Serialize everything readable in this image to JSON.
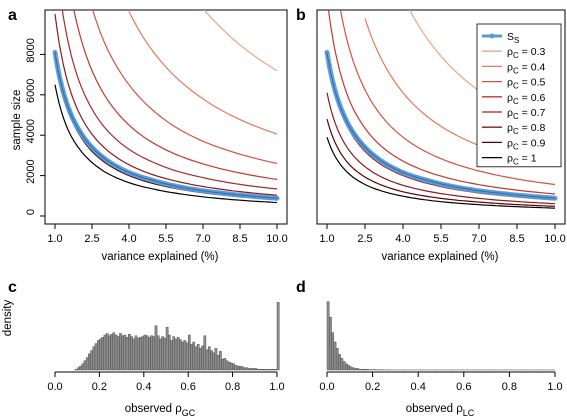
{
  "chart_data": [
    {
      "panel": "a",
      "type": "line",
      "xlabel": "variance explained (%)",
      "ylabel": "sample size",
      "xlim": [
        1,
        10
      ],
      "ylim": [
        0,
        10000
      ],
      "xticks": [
        "1.0",
        "2.5",
        "4.0",
        "5.5",
        "7.0",
        "8.5",
        "10.0"
      ],
      "yticks": [
        "0",
        "2000",
        "4000",
        "6000",
        "8000"
      ],
      "x": [
        1.0,
        1.5,
        2.0,
        2.5,
        3.0,
        4.0,
        5.0,
        6.0,
        7.0,
        8.0,
        9.0,
        10.0
      ],
      "series": [
        {
          "name": "S_S",
          "color": "#5b9bd5",
          "points": true,
          "values": [
            8100,
            5500,
            4200,
            3400,
            2850,
            2150,
            1750,
            1450,
            1250,
            1100,
            980,
            880
          ]
        },
        {
          "name": "ρC = 1",
          "color": "#000000",
          "values": [
            6500,
            4350,
            3300,
            2650,
            2200,
            1650,
            1330,
            1110,
            950,
            830,
            740,
            670
          ]
        },
        {
          "name": "ρC = 0.9",
          "color": "#5a0000",
          "values": [
            7900,
            5300,
            4000,
            3200,
            2670,
            2000,
            1600,
            1340,
            1150,
            1010,
            900,
            810
          ]
        },
        {
          "name": "ρC = 0.8",
          "color": "#8b1a1a",
          "values": [
            10000,
            6700,
            5050,
            4050,
            3380,
            2540,
            2030,
            1700,
            1460,
            1280,
            1140,
            1030
          ]
        },
        {
          "name": "ρC = 0.7",
          "color": "#a52a2a",
          "values": [
            null,
            8800,
            6600,
            5300,
            4400,
            3300,
            2650,
            2200,
            1900,
            1660,
            1480,
            1340
          ]
        },
        {
          "name": "ρC = 0.6",
          "color": "#c0392b",
          "values": [
            null,
            null,
            9000,
            7200,
            6000,
            4500,
            3600,
            3000,
            2580,
            2260,
            2010,
            1810
          ]
        },
        {
          "name": "ρC = 0.5",
          "color": "#d0543f",
          "values": [
            null,
            null,
            null,
            null,
            8600,
            6500,
            5200,
            4320,
            3700,
            3250,
            2890,
            2600
          ]
        },
        {
          "name": "ρC = 0.4",
          "color": "#e07b5a",
          "values": [
            null,
            null,
            null,
            null,
            null,
            null,
            8100,
            6760,
            5800,
            5070,
            4510,
            4060
          ]
        },
        {
          "name": "ρC = 0.3",
          "color": "#eba583",
          "values": [
            null,
            null,
            null,
            null,
            null,
            null,
            null,
            null,
            null,
            9000,
            8000,
            7200
          ]
        }
      ]
    },
    {
      "panel": "b",
      "type": "line",
      "xlabel": "variance explained (%)",
      "xlim": [
        1,
        10
      ],
      "ylim": [
        0,
        10000
      ],
      "xticks": [
        "1.0",
        "2.5",
        "4.0",
        "5.5",
        "7.0",
        "8.5",
        "10.0"
      ],
      "x": [
        1.0,
        1.5,
        2.0,
        2.5,
        3.0,
        4.0,
        5.0,
        6.0,
        7.0,
        8.0,
        9.0,
        10.0
      ],
      "series": [
        {
          "name": "S_S",
          "color": "#5b9bd5",
          "points": true,
          "values": [
            8100,
            5500,
            4200,
            3400,
            2850,
            2150,
            1750,
            1450,
            1250,
            1100,
            980,
            880
          ]
        },
        {
          "name": "ρC = 1",
          "color": "#000000",
          "values": [
            3900,
            2600,
            1950,
            1560,
            1300,
            980,
            780,
            650,
            560,
            490,
            435,
            390
          ]
        },
        {
          "name": "ρC = 0.9",
          "color": "#5a0000",
          "values": [
            4800,
            3200,
            2400,
            1930,
            1610,
            1200,
            960,
            800,
            690,
            600,
            535,
            480
          ]
        },
        {
          "name": "ρC = 0.8",
          "color": "#8b1a1a",
          "values": [
            6100,
            4050,
            3050,
            2440,
            2030,
            1520,
            1220,
            1020,
            870,
            760,
            680,
            610
          ]
        },
        {
          "name": "ρC = 0.7",
          "color": "#a52a2a",
          "values": [
            8000,
            5300,
            4000,
            3200,
            2660,
            2000,
            1600,
            1330,
            1140,
            1000,
            890,
            800
          ]
        },
        {
          "name": "ρC = 0.6",
          "color": "#c0392b",
          "values": [
            null,
            7200,
            5400,
            4350,
            3620,
            2720,
            2170,
            1810,
            1550,
            1360,
            1210,
            1090
          ]
        },
        {
          "name": "ρC = 0.5",
          "color": "#d0543f",
          "values": [
            null,
            null,
            7800,
            6250,
            5200,
            3900,
            3120,
            2600,
            2230,
            1950,
            1730,
            1560
          ]
        },
        {
          "name": "ρC = 0.4",
          "color": "#e07b5a",
          "values": [
            null,
            null,
            null,
            null,
            8150,
            6100,
            4880,
            4070,
            3490,
            3050,
            2710,
            2440
          ]
        },
        {
          "name": "ρC = 0.3",
          "color": "#eba583",
          "values": [
            null,
            null,
            null,
            null,
            null,
            null,
            8700,
            7250,
            6200,
            5430,
            4830,
            4340
          ]
        }
      ],
      "legend": {
        "placement": "top-right",
        "entries": [
          {
            "label": "S",
            "sub": "S",
            "color": "#5b9bd5",
            "points": true
          },
          {
            "label": "ρ",
            "sub": "C",
            "suffix": " = 0.3",
            "color": "#eba583"
          },
          {
            "label": "ρ",
            "sub": "C",
            "suffix": " = 0.4",
            "color": "#e07b5a"
          },
          {
            "label": "ρ",
            "sub": "C",
            "suffix": " = 0.5",
            "color": "#d0543f"
          },
          {
            "label": "ρ",
            "sub": "C",
            "suffix": " = 0.6",
            "color": "#c0392b"
          },
          {
            "label": "ρ",
            "sub": "C",
            "suffix": " = 0.7",
            "color": "#a52a2a"
          },
          {
            "label": "ρ",
            "sub": "C",
            "suffix": " = 0.8",
            "color": "#8b1a1a"
          },
          {
            "label": "ρ",
            "sub": "C",
            "suffix": " = 0.9",
            "color": "#5a0000"
          },
          {
            "label": "ρ",
            "sub": "C",
            "suffix": " = 1",
            "color": "#000000"
          }
        ]
      }
    },
    {
      "panel": "c",
      "type": "bar",
      "xlabel": "observed ρGC",
      "ylabel": "density",
      "xlim": [
        0,
        1
      ],
      "xticks": [
        "0.0",
        "0.2",
        "0.4",
        "0.6",
        "0.8",
        "1.0"
      ],
      "bin_width": 0.01,
      "bin_start": 0.0,
      "values": [
        0,
        0,
        0,
        0,
        0,
        0,
        0,
        0,
        0,
        1,
        3,
        5,
        8,
        12,
        16,
        21,
        25,
        30,
        34,
        38,
        40,
        42,
        45,
        47,
        44,
        46,
        48,
        45,
        43,
        47,
        44,
        45,
        42,
        46,
        43,
        40,
        44,
        41,
        42,
        43,
        45,
        44,
        42,
        44,
        43,
        57,
        44,
        40,
        43,
        41,
        55,
        45,
        38,
        43,
        40,
        42,
        39,
        36,
        38,
        35,
        45,
        33,
        36,
        30,
        33,
        28,
        31,
        44,
        26,
        30,
        25,
        22,
        28,
        19,
        24,
        14,
        15,
        12,
        10,
        9,
        8,
        6,
        5,
        5,
        4,
        3,
        3,
        2,
        2,
        2,
        2,
        1,
        1,
        1,
        1,
        1,
        1,
        1,
        1,
        1,
        87
      ],
      "ymax": 90
    },
    {
      "panel": "d",
      "type": "bar",
      "xlabel": "observed ρLC",
      "xlim": [
        0,
        1
      ],
      "xticks": [
        "0.0",
        "0.2",
        "0.4",
        "0.6",
        "0.8",
        "1.0"
      ],
      "bin_width": 0.01,
      "bin_start": 0.0,
      "values": [
        88,
        68,
        48,
        36,
        28,
        20,
        15,
        11,
        8,
        6,
        4,
        3,
        2,
        2,
        1,
        1,
        1,
        1,
        0.5,
        0.5,
        0.5,
        0.5,
        0.3,
        0.3,
        0.3,
        0.2,
        0.2,
        0.2,
        0.1,
        0.1,
        0.1,
        0.1,
        0.1,
        0.1,
        0.1,
        0.1,
        0.1,
        0.1,
        0.1,
        0.1,
        0.1,
        0.1,
        0.1,
        0.1,
        0.1,
        0.1,
        0.1,
        0.1,
        0.1,
        0.1,
        0.1,
        0.1,
        0.1,
        0.1,
        0.1,
        0.1,
        0.1,
        0.1,
        0.1,
        0.1,
        0.1,
        0.1,
        0.1,
        0.1,
        0.1,
        0.1,
        0.1,
        0.1,
        0.1,
        0.1,
        0.1,
        0.1,
        0.1,
        0.1,
        0.1,
        0.1,
        0.1,
        0.1,
        0.1,
        0.1,
        0.1,
        0.1,
        0.1,
        0.1,
        0.1,
        0.1,
        0.1,
        0.1,
        0.1,
        0.1,
        0.1,
        0.1,
        0.1,
        0.1,
        0.1,
        0.1,
        0.1,
        0.1,
        0.1,
        0.1
      ],
      "ymax": 90
    }
  ],
  "labels": {
    "panel_a": "a",
    "panel_b": "b",
    "panel_c": "c",
    "panel_d": "d",
    "ylabel_top": "sample size",
    "ylabel_bottom": "density",
    "xlabel_a": "variance explained (%)",
    "xlabel_b": "variance explained (%)",
    "xlabel_c_main": "observed ρ",
    "xlabel_c_sub": "GC",
    "xlabel_d_main": "observed ρ",
    "xlabel_d_sub": "LC"
  }
}
